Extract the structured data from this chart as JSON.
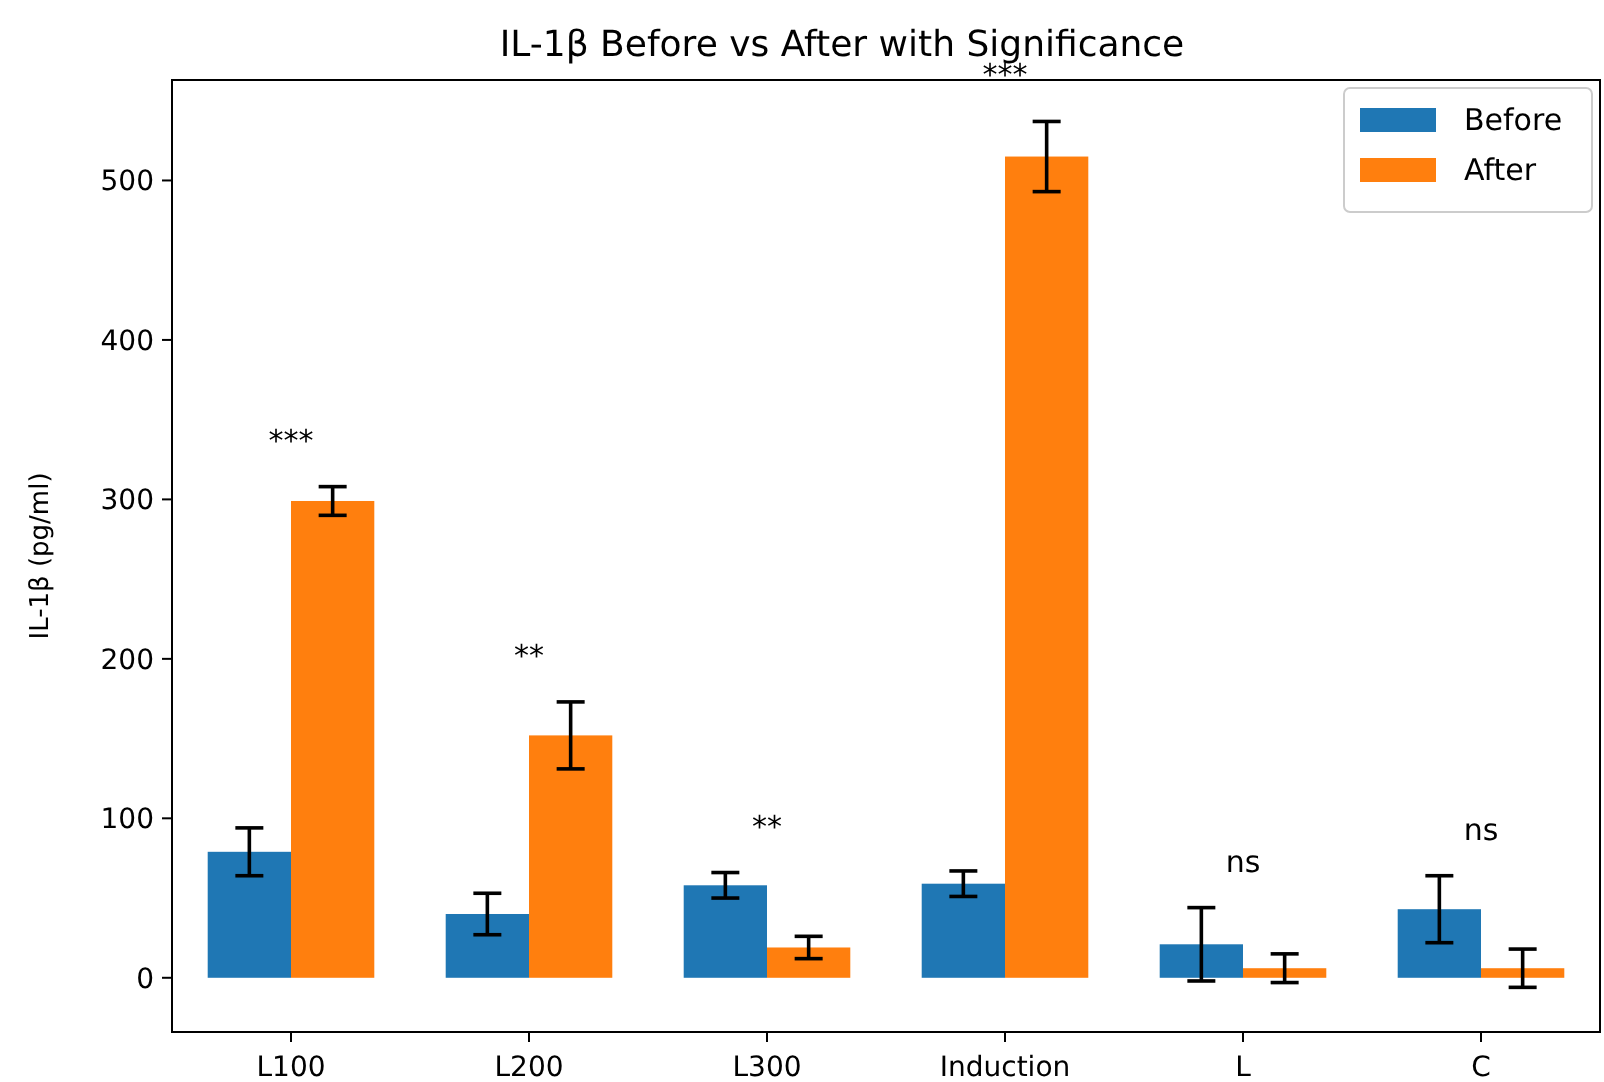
{
  "chart_data": {
    "type": "bar",
    "title": "IL-1β Before vs After with Significance",
    "ylabel": "IL-1β (pg/ml)",
    "categories": [
      "L100",
      "L200",
      "L300",
      "Induction",
      "L",
      "C"
    ],
    "series": [
      {
        "name": "Before",
        "color": "#1f77b4",
        "values": [
          79,
          40,
          58,
          59,
          21,
          43
        ],
        "errors": [
          15,
          13,
          8,
          8,
          23,
          21
        ]
      },
      {
        "name": "After",
        "color": "#ff7f0e",
        "values": [
          299,
          152,
          19,
          515,
          6,
          6
        ],
        "errors": [
          9,
          21,
          7,
          22,
          9,
          12
        ]
      }
    ],
    "ylim": [
      -34,
      563
    ],
    "yticks": [
      0,
      100,
      200,
      300,
      400,
      500
    ],
    "legend": "top right",
    "annotations": [
      "***",
      "**",
      "**",
      "***",
      "ns",
      "ns"
    ]
  }
}
